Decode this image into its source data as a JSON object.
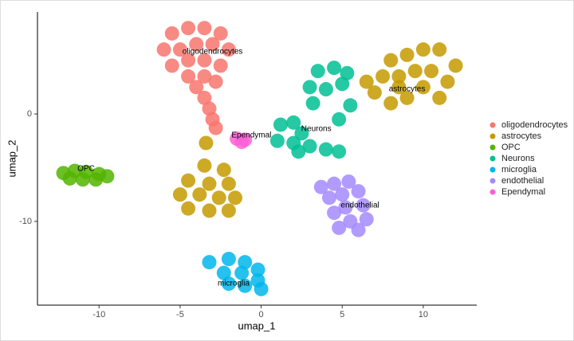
{
  "chart_data": {
    "type": "scatter",
    "x_label": "umap_1",
    "y_label": "umap_2",
    "xlim": [
      -13.8,
      13.3
    ],
    "ylim": [
      -17.8,
      9.5
    ],
    "xticks": [
      -10,
      -5,
      0,
      5,
      10
    ],
    "yticks": [
      -10,
      0
    ],
    "grid": false,
    "legend": "right",
    "series": [
      {
        "name": "oligodendrocytes",
        "color": "#F8766D",
        "x": [
          -5.5,
          -4.5,
          -3.5,
          -2.5,
          -6,
          -5,
          -4,
          -3,
          -2,
          -5.5,
          -4.5,
          -3.5,
          -2.5,
          -4.5,
          -3.5,
          -2.8,
          -4,
          -3.5,
          -3.2,
          -3,
          -2.8
        ],
        "values": [
          7.5,
          8,
          8,
          7.5,
          6,
          6,
          6.5,
          6.5,
          6,
          4.5,
          5,
          5,
          4.5,
          3.5,
          3.5,
          3,
          2.5,
          1.5,
          0.5,
          -0.5,
          -1.3
        ]
      },
      {
        "name": "astrocytes",
        "color": "#C49A00",
        "x": [
          8,
          9,
          10,
          11,
          12,
          11.5,
          10.5,
          9.5,
          8.5,
          7.5,
          6.5,
          7,
          8.5,
          10,
          11,
          9,
          8,
          -3.4,
          -3.5,
          -2.3,
          -4.5,
          -3.2,
          -2,
          -5,
          -3.8,
          -2.6,
          -1.6,
          -4.5,
          -3.2,
          -2
        ],
        "values": [
          5,
          5.5,
          6,
          6,
          4.5,
          3,
          4,
          4,
          3.5,
          3.5,
          3,
          2,
          2.5,
          2.5,
          1.5,
          1.5,
          1,
          -2.7,
          -4.8,
          -5.2,
          -6.2,
          -6.5,
          -6.5,
          -7.5,
          -7.5,
          -7.8,
          -7.8,
          -8.8,
          -9,
          -9
        ]
      },
      {
        "name": "OPC",
        "color": "#53B400",
        "x": [
          -12.2,
          -11.5,
          -10.8,
          -10,
          -11.8,
          -11,
          -10.2,
          -9.5
        ],
        "values": [
          -5.5,
          -5.3,
          -5.4,
          -5.6,
          -6,
          -6.1,
          -6.1,
          -5.8
        ]
      },
      {
        "name": "Neurons",
        "color": "#00C094",
        "x": [
          3.5,
          4.5,
          5.3,
          3,
          4,
          5,
          3.2,
          5.5,
          4.8,
          1.2,
          2,
          2.5,
          2,
          3,
          4,
          4.8,
          1,
          2.3
        ],
        "values": [
          4,
          4.3,
          3.8,
          2.5,
          2.3,
          2.8,
          1,
          0.8,
          -0.5,
          -1,
          -0.8,
          -1.8,
          -2.7,
          -3,
          -3.3,
          -3.5,
          -2.5,
          -3.5
        ]
      },
      {
        "name": "microglia",
        "color": "#00B6EB",
        "x": [
          -3.2,
          -2,
          -1,
          -0.2,
          -2.3,
          -1.2,
          -0.2,
          -2,
          -1,
          0
        ],
        "values": [
          -13.8,
          -13.5,
          -13.8,
          -14.5,
          -14.8,
          -14.8,
          -15.5,
          -15.8,
          -16,
          -16.3
        ]
      },
      {
        "name": "endothelial",
        "color": "#A58AFF",
        "x": [
          3.7,
          4.5,
          5.4,
          6,
          5,
          4.2,
          6.3,
          5.2,
          4.5,
          6.5,
          5.5,
          4.8,
          6
        ],
        "values": [
          -6.8,
          -6.5,
          -6.3,
          -7.2,
          -7.5,
          -7.8,
          -8.5,
          -8.7,
          -9.2,
          -9.8,
          -10,
          -10.6,
          -10.8
        ]
      },
      {
        "name": "Ependymal",
        "color": "#FB61D7",
        "x": [
          -1.5,
          -1,
          -1.2
        ],
        "values": [
          -2.3,
          -2.4,
          -2.6
        ]
      }
    ],
    "annotations": [
      {
        "text": "oligodendrocytes",
        "x": -3,
        "y": 5.8
      },
      {
        "text": "astrocytes",
        "x": 9,
        "y": 2.3
      },
      {
        "text": "OPC",
        "x": -10.8,
        "y": -5.1
      },
      {
        "text": "Neurons",
        "x": 3.4,
        "y": -1.4
      },
      {
        "text": "microglia",
        "x": -1.7,
        "y": -15.8
      },
      {
        "text": "endothelial",
        "x": 6.1,
        "y": -8.5
      },
      {
        "text": "Ependymal",
        "x": -0.6,
        "y": -2
      },
      {
        "text": "",
        "x": 0,
        "y": 0
      }
    ]
  }
}
